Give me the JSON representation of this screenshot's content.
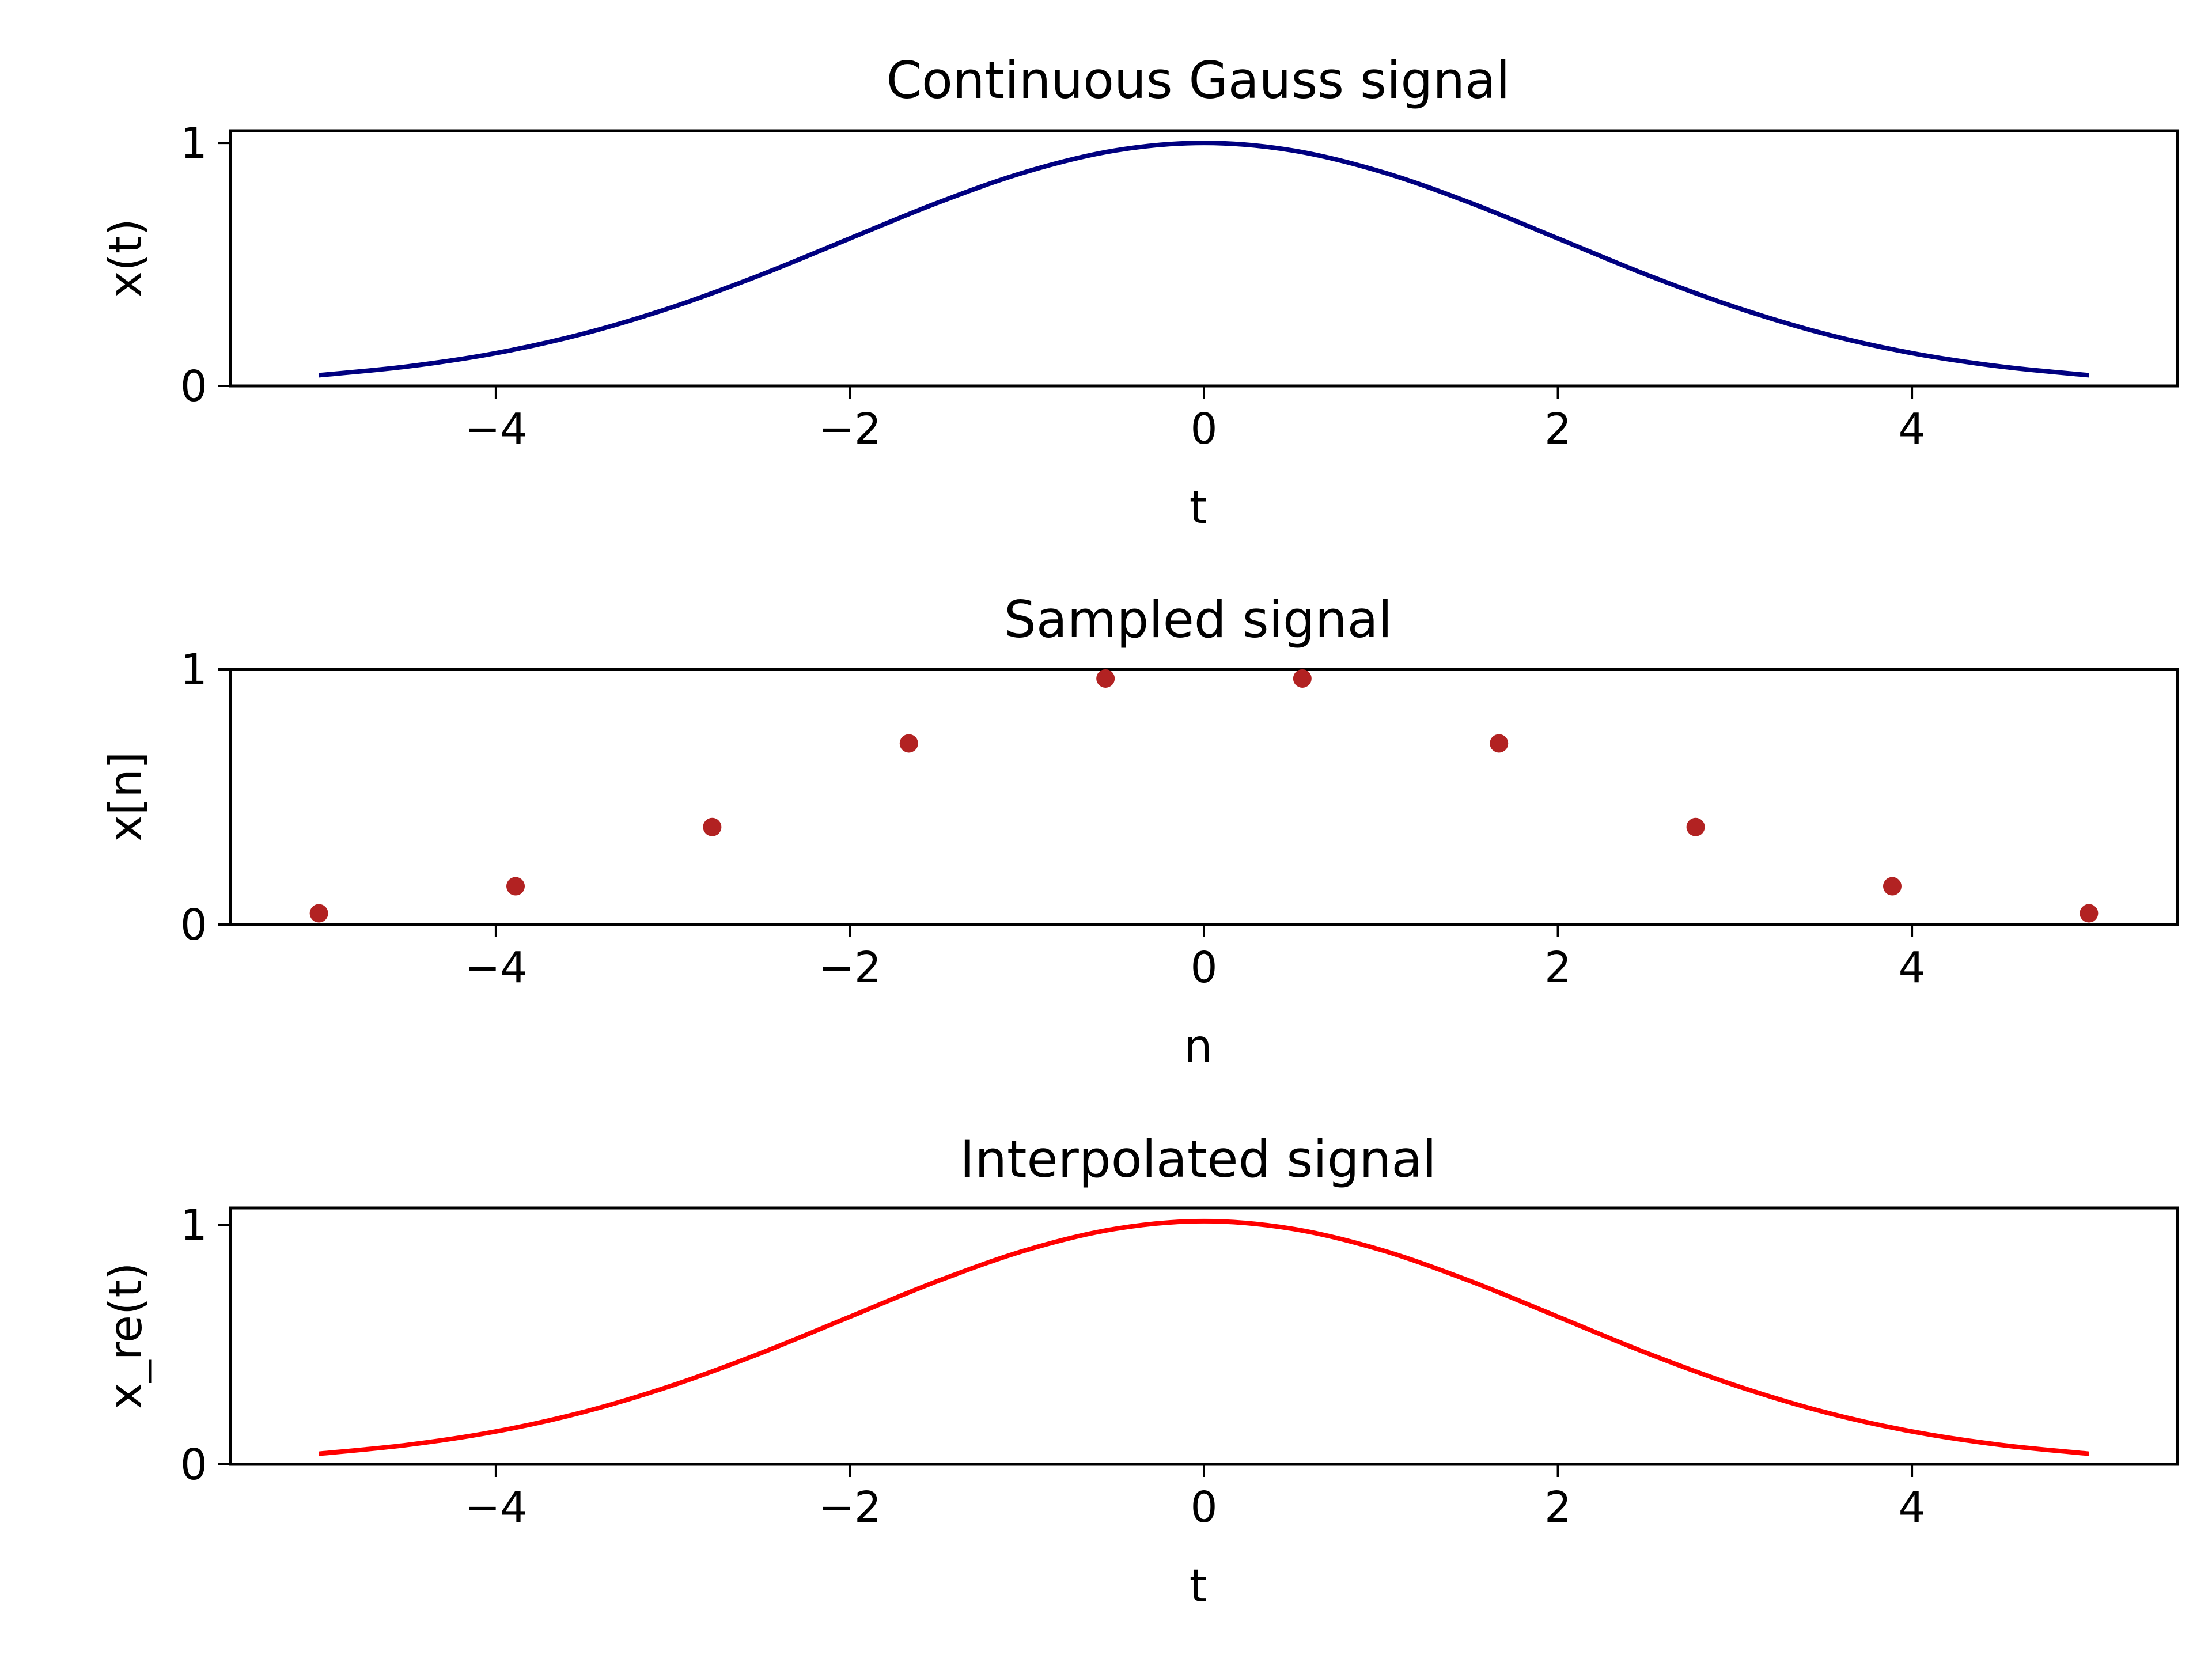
{
  "chart_data": [
    {
      "type": "line",
      "title": "Continuous Gauss signal",
      "xlabel": "t",
      "ylabel": "x(t)",
      "xlim": [
        -5.5,
        5.5
      ],
      "ylim": [
        0,
        1.05
      ],
      "x_ticks": [
        -4,
        -2,
        0,
        2,
        4
      ],
      "x_tick_labels": [
        "−4",
        "−2",
        "0",
        "2",
        "4"
      ],
      "y_ticks": [
        0,
        1
      ],
      "y_tick_labels": [
        "0",
        "1"
      ],
      "grid": false,
      "color": "#000080",
      "series": [
        {
          "x": [
            -5.0,
            -4.5,
            -4.0,
            -3.5,
            -3.0,
            -2.5,
            -2.0,
            -1.5,
            -1.0,
            -0.5,
            0.0,
            0.5,
            1.0,
            1.5,
            2.0,
            2.5,
            3.0,
            3.5,
            4.0,
            4.5,
            5.0
          ],
          "values": [
            0.044,
            0.08,
            0.135,
            0.216,
            0.325,
            0.458,
            0.607,
            0.755,
            0.882,
            0.969,
            1.0,
            0.969,
            0.882,
            0.755,
            0.607,
            0.458,
            0.325,
            0.216,
            0.135,
            0.08,
            0.044
          ]
        }
      ]
    },
    {
      "type": "scatter",
      "title": "Sampled signal",
      "xlabel": "n",
      "ylabel": "x[n]",
      "xlim": [
        -5.5,
        5.5
      ],
      "ylim": [
        0,
        1.0
      ],
      "x_ticks": [
        -4,
        -2,
        0,
        2,
        4
      ],
      "x_tick_labels": [
        "−4",
        "−2",
        "0",
        "2",
        "4"
      ],
      "y_ticks": [
        0,
        1
      ],
      "y_tick_labels": [
        "0",
        "1"
      ],
      "grid": false,
      "color": "#b22222",
      "series": [
        {
          "x": [
            -5.0,
            -3.889,
            -2.778,
            -1.667,
            -0.556,
            0.556,
            1.667,
            2.778,
            3.889,
            5.0
          ],
          "values": [
            0.044,
            0.15,
            0.382,
            0.71,
            0.964,
            0.964,
            0.71,
            0.382,
            0.15,
            0.044
          ]
        }
      ]
    },
    {
      "type": "line",
      "title": "Interpolated signal",
      "xlabel": "t",
      "ylabel": "x_re(t)",
      "xlim": [
        -5.5,
        5.5
      ],
      "ylim": [
        0,
        1.07
      ],
      "x_ticks": [
        -4,
        -2,
        0,
        2,
        4
      ],
      "x_tick_labels": [
        "−4",
        "−2",
        "0",
        "2",
        "4"
      ],
      "y_ticks": [
        0,
        1
      ],
      "y_tick_labels": [
        "0",
        "1"
      ],
      "grid": false,
      "color": "#ff0000",
      "series": [
        {
          "x": [
            -5.0,
            -4.5,
            -4.0,
            -3.5,
            -3.0,
            -2.5,
            -2.0,
            -1.5,
            -1.0,
            -0.5,
            0.0,
            0.5,
            1.0,
            1.5,
            2.0,
            2.5,
            3.0,
            3.5,
            4.0,
            4.5,
            5.0
          ],
          "values": [
            0.044,
            0.081,
            0.137,
            0.219,
            0.33,
            0.465,
            0.616,
            0.766,
            0.895,
            0.983,
            1.015,
            0.983,
            0.895,
            0.766,
            0.616,
            0.465,
            0.33,
            0.219,
            0.137,
            0.081,
            0.044
          ]
        }
      ]
    }
  ]
}
